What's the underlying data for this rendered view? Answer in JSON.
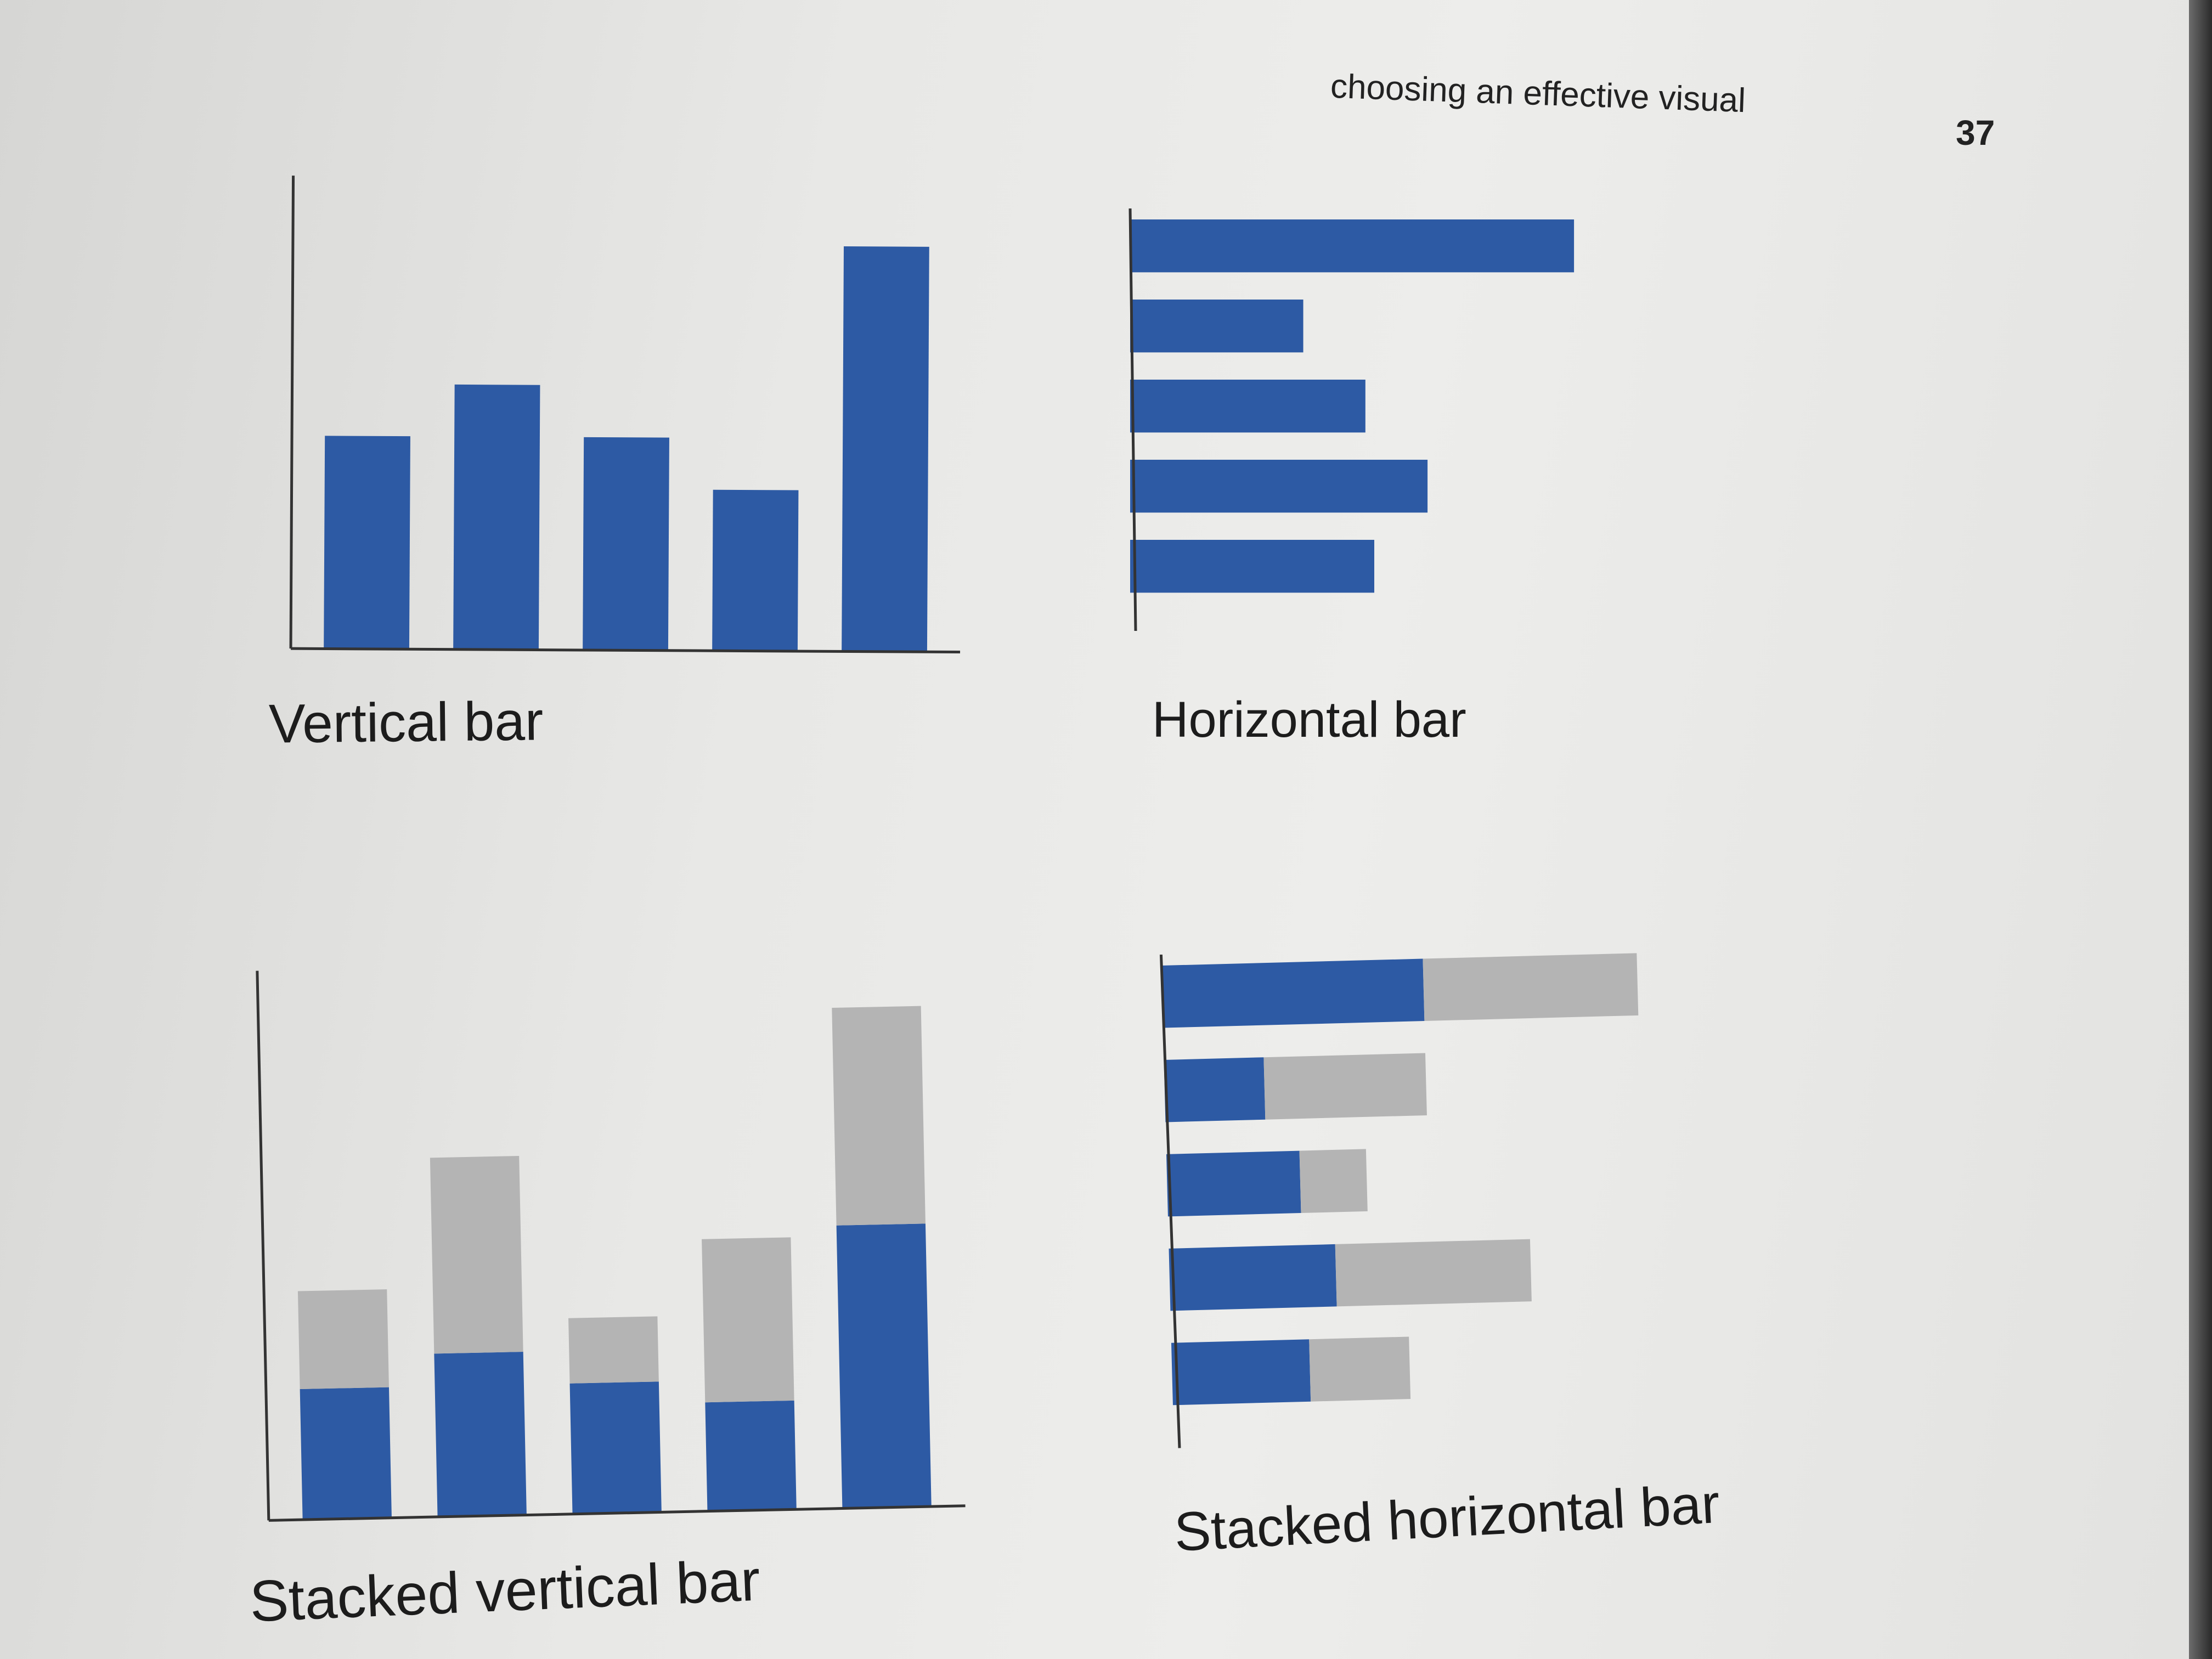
{
  "header": {
    "running_title": "choosing an effective visual",
    "page_number": "37"
  },
  "colors": {
    "primary_bar": "#2d5aa4",
    "secondary_bar": "#b4b4b4",
    "axis": "#333333"
  },
  "chart_data": [
    {
      "type": "bar",
      "orientation": "vertical",
      "caption": "Vertical bar",
      "values": [
        41,
        51,
        41,
        31,
        78
      ],
      "ylim": [
        0,
        90
      ]
    },
    {
      "type": "bar",
      "orientation": "horizontal",
      "caption": "Horizontal bar",
      "values": [
        100,
        39,
        53,
        67,
        55
      ],
      "xlim": [
        0,
        110
      ]
    },
    {
      "type": "bar",
      "orientation": "vertical",
      "stacked": true,
      "caption": "Stacked vertical bar",
      "series": [
        {
          "values": [
            24,
            30,
            24,
            20,
            52
          ]
        },
        {
          "values": [
            18,
            36,
            12,
            30,
            40
          ]
        }
      ],
      "ylim": [
        0,
        100
      ]
    },
    {
      "type": "bar",
      "orientation": "horizontal",
      "stacked": true,
      "caption": "Stacked horizontal bar",
      "series": [
        {
          "values": [
            55,
            21,
            28,
            35,
            29
          ]
        },
        {
          "values": [
            45,
            34,
            14,
            41,
            21
          ]
        }
      ],
      "xlim": [
        0,
        105
      ]
    }
  ]
}
